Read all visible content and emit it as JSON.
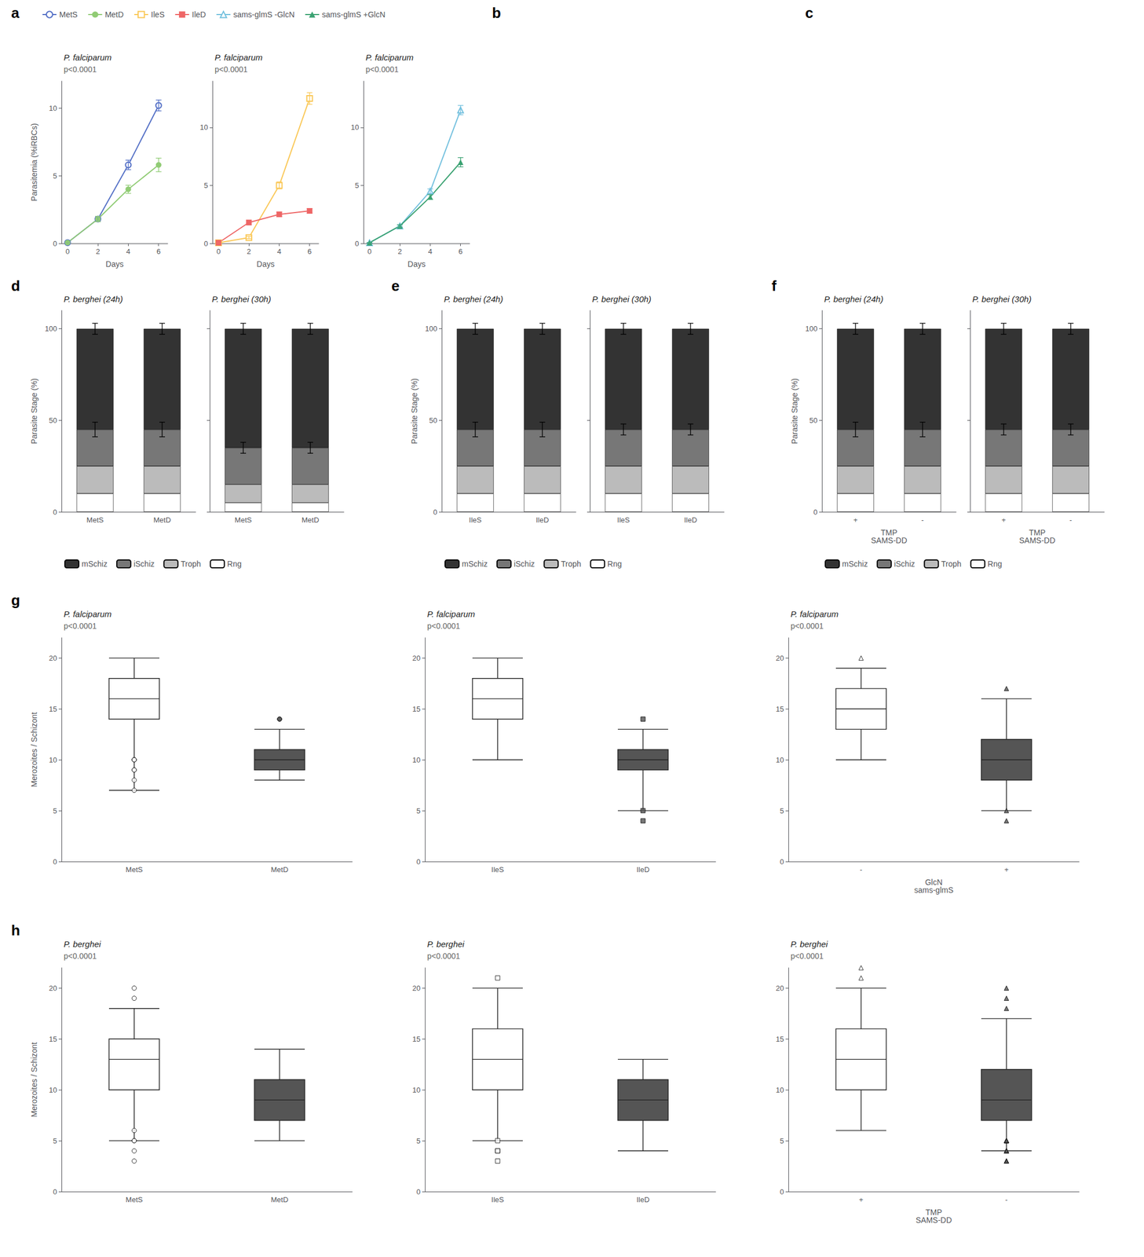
{
  "chart_data": [
    {
      "type": "line",
      "panel": "a",
      "title": "P. falciparum",
      "annotations": [
        "p<0.0001"
      ],
      "legend": "top",
      "grid": false,
      "xlabel": "Days",
      "ylabel": "Parasitemia (%iRBCs)",
      "x": [
        0,
        2,
        4,
        6
      ],
      "xlim": [
        -0.4,
        6.6
      ],
      "xticks": [
        0,
        2,
        4,
        6
      ],
      "ylim": [
        0,
        12
      ],
      "yticks": [
        0,
        5,
        10
      ],
      "series": [
        {
          "name": "MetS",
          "marker": "open circle",
          "values": [
            0.05,
            1.8,
            5.8,
            10.2
          ],
          "errors": [
            0.01,
            0.2,
            0.35,
            0.4
          ]
        },
        {
          "name": "MetD",
          "marker": "circle",
          "values": [
            0.05,
            1.8,
            4.0,
            5.8
          ],
          "errors": [
            0.01,
            0.2,
            0.3,
            0.5
          ]
        }
      ]
    },
    {
      "type": "line",
      "panel": "a",
      "title": "P. falciparum",
      "annotations": [
        "p<0.0001"
      ],
      "legend": "top",
      "grid": false,
      "xlabel": "Days",
      "x": [
        0,
        2,
        4,
        6
      ],
      "xlim": [
        -0.4,
        6.6
      ],
      "xticks": [
        0,
        2,
        4,
        6
      ],
      "ylim": [
        0,
        14
      ],
      "yticks": [
        0,
        5,
        10
      ],
      "series": [
        {
          "name": "IleS",
          "marker": "open square",
          "values": [
            0.05,
            0.5,
            5.0,
            12.5
          ],
          "errors": [
            0.01,
            0.1,
            0.3,
            0.5
          ]
        },
        {
          "name": "IleD",
          "marker": "square",
          "values": [
            0.05,
            1.8,
            2.5,
            2.8
          ],
          "errors": [
            0.01,
            0.2,
            0.2,
            0.2
          ]
        }
      ]
    },
    {
      "type": "line",
      "panel": "a",
      "title": "P. falciparum",
      "annotations": [
        "p<0.0001"
      ],
      "legend": "top",
      "grid": false,
      "xlabel": "Days",
      "x": [
        0,
        2,
        4,
        6
      ],
      "xlim": [
        -0.4,
        6.6
      ],
      "xticks": [
        0,
        2,
        4,
        6
      ],
      "ylim": [
        0,
        14
      ],
      "yticks": [
        0,
        5,
        10
      ],
      "series": [
        {
          "name": "sams-glmS -GlcN",
          "marker": "open triangle",
          "values": [
            0.05,
            1.5,
            4.5,
            11.5
          ],
          "errors": [
            0.01,
            0.1,
            0.2,
            0.4
          ]
        },
        {
          "name": "sams-glmS +GlcN",
          "marker": "triangle",
          "values": [
            0.05,
            1.5,
            4.0,
            7.0
          ],
          "errors": [
            0.01,
            0.1,
            0.2,
            0.4
          ]
        }
      ]
    },
    {
      "type": "empty",
      "panel": "b"
    },
    {
      "type": "empty",
      "panel": "c"
    },
    {
      "type": "bar",
      "stacked": true,
      "panel": "d",
      "title": "P. berghei (24h)",
      "legend": "bottom",
      "grid": false,
      "ylabel": "Parasite Stage (%)",
      "categories": [
        "MetS",
        "MetD"
      ],
      "ylim": [
        0,
        110
      ],
      "yticks": [
        0,
        50,
        100
      ],
      "series": [
        {
          "name": "Rng",
          "color": "#ffffff",
          "values": [
            10,
            10
          ]
        },
        {
          "name": "Troph",
          "color": "#bbbbbb",
          "values": [
            15,
            15
          ]
        },
        {
          "name": "iSchiz",
          "color": "#777777",
          "values": [
            20,
            20
          ],
          "errors": [
            4,
            4
          ]
        },
        {
          "name": "mSchiz",
          "color": "#333333",
          "values": [
            55,
            55
          ],
          "errors": [
            3,
            3
          ]
        }
      ]
    },
    {
      "type": "bar",
      "stacked": true,
      "panel": "d",
      "title": "P. berghei (30h)",
      "legend": "bottom",
      "grid": false,
      "tick_labels": "x",
      "categories": [
        "MetS",
        "MetD"
      ],
      "ylim": [
        0,
        110
      ],
      "yticks": [
        0,
        50,
        100
      ],
      "series": [
        {
          "name": "Rng",
          "color": "#ffffff",
          "values": [
            5,
            5
          ]
        },
        {
          "name": "Troph",
          "color": "#bbbbbb",
          "values": [
            10,
            10
          ]
        },
        {
          "name": "iSchiz",
          "color": "#777777",
          "values": [
            20,
            20
          ],
          "errors": [
            3,
            3
          ]
        },
        {
          "name": "mSchiz",
          "color": "#333333",
          "values": [
            65,
            65
          ],
          "errors": [
            3,
            3
          ]
        }
      ]
    },
    {
      "type": "bar",
      "stacked": true,
      "panel": "e",
      "title": "P. berghei (24h)",
      "legend": "bottom",
      "grid": false,
      "ylabel": "Parasite Stage (%)",
      "categories": [
        "IleS",
        "IleD"
      ],
      "ylim": [
        0,
        110
      ],
      "yticks": [
        0,
        50,
        100
      ],
      "series": [
        {
          "name": "Rng",
          "color": "#ffffff",
          "values": [
            10,
            10
          ]
        },
        {
          "name": "Troph",
          "color": "#bbbbbb",
          "values": [
            15,
            15
          ]
        },
        {
          "name": "iSchiz",
          "color": "#777777",
          "values": [
            20,
            20
          ],
          "errors": [
            4,
            4
          ]
        },
        {
          "name": "mSchiz",
          "color": "#333333",
          "values": [
            55,
            55
          ],
          "errors": [
            3,
            3
          ]
        }
      ]
    },
    {
      "type": "bar",
      "stacked": true,
      "panel": "e",
      "title": "P. berghei (30h)",
      "legend": "bottom",
      "grid": false,
      "tick_labels": "x",
      "categories": [
        "IleS",
        "IleD"
      ],
      "ylim": [
        0,
        110
      ],
      "yticks": [
        0,
        50,
        100
      ],
      "series": [
        {
          "name": "Rng",
          "color": "#ffffff",
          "values": [
            10,
            10
          ]
        },
        {
          "name": "Troph",
          "color": "#bbbbbb",
          "values": [
            15,
            15
          ]
        },
        {
          "name": "iSchiz",
          "color": "#777777",
          "values": [
            20,
            20
          ],
          "errors": [
            3,
            3
          ]
        },
        {
          "name": "mSchiz",
          "color": "#333333",
          "values": [
            55,
            55
          ],
          "errors": [
            3,
            3
          ]
        }
      ]
    },
    {
      "type": "bar",
      "stacked": true,
      "panel": "f",
      "title": "P. berghei (24h)",
      "legend": "bottom",
      "grid": false,
      "ylabel": "Parasite Stage (%)",
      "xlabel": [
        "TMP",
        "SAMS-DD"
      ],
      "categories": [
        "+",
        "-"
      ],
      "ylim": [
        0,
        110
      ],
      "yticks": [
        0,
        50,
        100
      ],
      "series": [
        {
          "name": "Rng",
          "color": "#ffffff",
          "values": [
            10,
            10
          ]
        },
        {
          "name": "Troph",
          "color": "#bbbbbb",
          "values": [
            15,
            15
          ]
        },
        {
          "name": "iSchiz",
          "color": "#777777",
          "values": [
            20,
            20
          ],
          "errors": [
            4,
            4
          ]
        },
        {
          "name": "mSchiz",
          "color": "#333333",
          "values": [
            55,
            55
          ],
          "errors": [
            3,
            3
          ]
        }
      ]
    },
    {
      "type": "bar",
      "stacked": true,
      "panel": "f",
      "title": "P. berghei (30h)",
      "legend": "bottom",
      "grid": false,
      "tick_labels": "x",
      "xlabel": [
        "TMP",
        "SAMS-DD"
      ],
      "categories": [
        "+",
        "-"
      ],
      "ylim": [
        0,
        110
      ],
      "yticks": [
        0,
        50,
        100
      ],
      "series": [
        {
          "name": "Rng",
          "color": "#ffffff",
          "values": [
            10,
            10
          ]
        },
        {
          "name": "Troph",
          "color": "#bbbbbb",
          "values": [
            15,
            15
          ]
        },
        {
          "name": "iSchiz",
          "color": "#777777",
          "values": [
            20,
            20
          ],
          "errors": [
            3,
            3
          ]
        },
        {
          "name": "mSchiz",
          "color": "#333333",
          "values": [
            55,
            55
          ],
          "errors": [
            3,
            3
          ]
        }
      ]
    },
    {
      "type": "box",
      "panel": "g",
      "title": "P. falciparum",
      "annotations": [
        "p<0.0001"
      ],
      "grid": false,
      "ylabel": "Merozoites / Schizont",
      "categories": [
        "MetS",
        "MetD"
      ],
      "ylim": [
        0,
        22
      ],
      "yticks": [
        0,
        5,
        10,
        15,
        20
      ],
      "marker": "circle",
      "colors": [
        "#ffffff",
        "#555555"
      ],
      "boxes": [
        {
          "low": 7,
          "q1": 14,
          "median": 16,
          "q3": 18,
          "high": 20,
          "fliers": [
            7,
            8,
            9,
            9,
            10,
            10,
            10
          ]
        },
        {
          "low": 8,
          "q1": 9,
          "median": 10,
          "q3": 11,
          "high": 13,
          "fliers": [
            14,
            14
          ]
        }
      ]
    },
    {
      "type": "box",
      "panel": "g",
      "title": "P. falciparum",
      "annotations": [
        "p<0.0001"
      ],
      "grid": false,
      "categories": [
        "IleS",
        "IleD"
      ],
      "ylim": [
        0,
        22
      ],
      "yticks": [
        0,
        5,
        10,
        15,
        20
      ],
      "marker": "square",
      "colors": [
        "#ffffff",
        "#555555"
      ],
      "boxes": [
        {
          "low": 10,
          "q1": 14,
          "median": 16,
          "q3": 18,
          "high": 20,
          "fliers": []
        },
        {
          "low": 5,
          "q1": 9,
          "median": 10,
          "q3": 11,
          "high": 13,
          "fliers": [
            4,
            5,
            14
          ]
        }
      ]
    },
    {
      "type": "box",
      "panel": "g",
      "title": "P. falciparum",
      "annotations": [
        "p<0.0001"
      ],
      "grid": false,
      "xlabel": [
        "GlcN",
        "sams-glmS"
      ],
      "categories": [
        "-",
        "+"
      ],
      "ylim": [
        0,
        22
      ],
      "yticks": [
        0,
        5,
        10,
        15,
        20
      ],
      "marker": "triangle",
      "colors": [
        "#ffffff",
        "#555555"
      ],
      "boxes": [
        {
          "low": 10,
          "q1": 13,
          "median": 15,
          "q3": 17,
          "high": 19,
          "fliers": [
            20
          ]
        },
        {
          "low": 5,
          "q1": 8,
          "median": 10,
          "q3": 12,
          "high": 16,
          "fliers": [
            4,
            5,
            17
          ]
        }
      ]
    },
    {
      "type": "box",
      "panel": "h",
      "title": "P. berghei",
      "annotations": [
        "p<0.0001"
      ],
      "grid": false,
      "ylabel": "Merozoites / Schizont",
      "categories": [
        "MetS",
        "MetD"
      ],
      "ylim": [
        0,
        22
      ],
      "yticks": [
        0,
        5,
        10,
        15,
        20
      ],
      "marker": "circle",
      "colors": [
        "#ffffff",
        "#555555"
      ],
      "boxes": [
        {
          "low": 5,
          "q1": 10,
          "median": 13,
          "q3": 15,
          "high": 18,
          "fliers": [
            3,
            4,
            5,
            5,
            6,
            19,
            20
          ]
        },
        {
          "low": 5,
          "q1": 7,
          "median": 9,
          "q3": 11,
          "high": 14,
          "fliers": []
        }
      ]
    },
    {
      "type": "box",
      "panel": "h",
      "title": "P. berghei",
      "annotations": [
        "p<0.0001"
      ],
      "grid": false,
      "categories": [
        "IleS",
        "IleD"
      ],
      "ylim": [
        0,
        22
      ],
      "yticks": [
        0,
        5,
        10,
        15,
        20
      ],
      "marker": "square",
      "colors": [
        "#ffffff",
        "#555555"
      ],
      "boxes": [
        {
          "low": 5,
          "q1": 10,
          "median": 13,
          "q3": 16,
          "high": 20,
          "fliers": [
            3,
            4,
            4,
            5,
            21
          ]
        },
        {
          "low": 4,
          "q1": 7,
          "median": 9,
          "q3": 11,
          "high": 13,
          "fliers": []
        }
      ]
    },
    {
      "type": "box",
      "panel": "h",
      "title": "P. berghei",
      "annotations": [
        "p<0.0001"
      ],
      "grid": false,
      "xlabel": [
        "TMP",
        "SAMS-DD"
      ],
      "categories": [
        "+",
        "-"
      ],
      "ylim": [
        0,
        22
      ],
      "yticks": [
        0,
        5,
        10,
        15,
        20
      ],
      "marker": "triangle",
      "colors": [
        "#ffffff",
        "#555555"
      ],
      "boxes": [
        {
          "low": 6,
          "q1": 10,
          "median": 13,
          "q3": 16,
          "high": 20,
          "fliers": [
            21,
            22
          ]
        },
        {
          "low": 4,
          "q1": 7,
          "median": 9,
          "q3": 12,
          "high": 17,
          "fliers": [
            3,
            3,
            3,
            4,
            4,
            4,
            4,
            5,
            5,
            5,
            5,
            5,
            18,
            19,
            20
          ]
        }
      ]
    }
  ]
}
